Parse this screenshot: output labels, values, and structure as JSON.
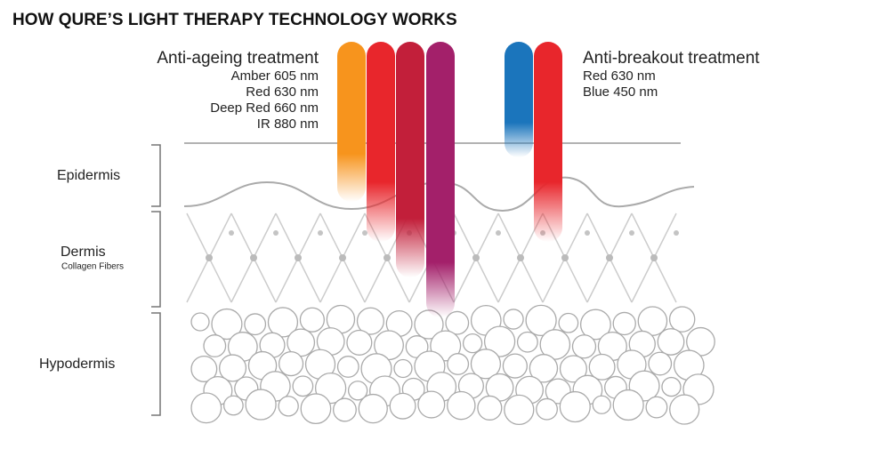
{
  "header": {
    "title": "HOW QURE’S LIGHT THERAPY TECHNOLOGY WORKS"
  },
  "anti_ageing": {
    "title": "Anti-ageing treatment",
    "lights": [
      "Amber 605 nm",
      "Red 630 nm",
      "Deep Red 660 nm",
      "IR 880 nm"
    ]
  },
  "anti_breakout": {
    "title": "Anti-breakout treatment",
    "lights": [
      "Red 630 nm",
      "Blue 450 nm"
    ]
  },
  "layers": {
    "epidermis": "Epidermis",
    "dermis": "Dermis",
    "dermis_note": "Collagen Fibers",
    "hypodermis": "Hypodermis"
  }
}
